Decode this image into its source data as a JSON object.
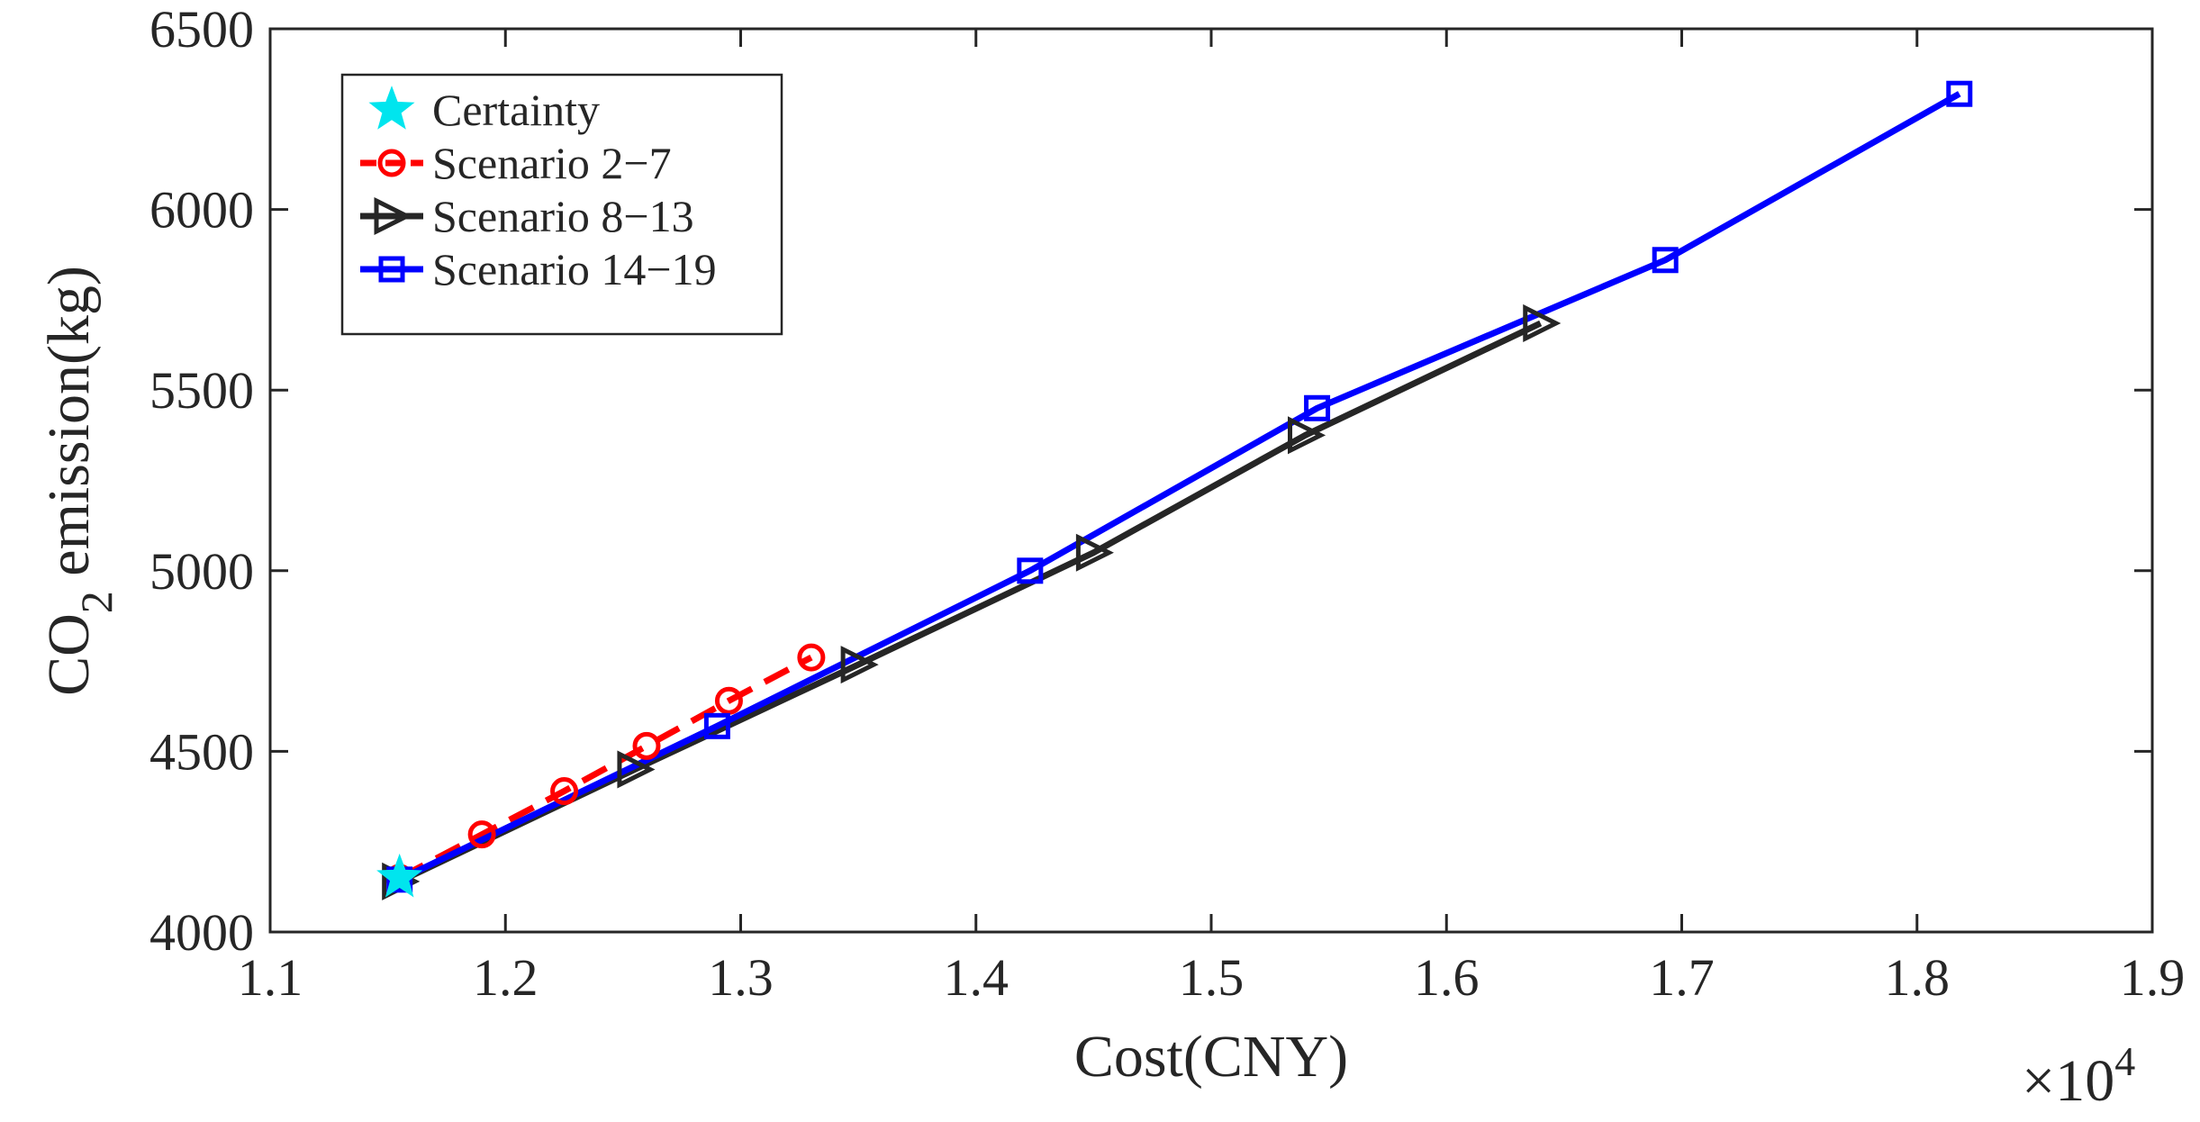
{
  "chart_data": {
    "type": "line",
    "title": "",
    "xlabel": "Cost(CNY)",
    "ylabel_main": "CO",
    "ylabel_sub": "2",
    "ylabel_rest": " emission(kg)",
    "x_multiplier_base": "×10",
    "x_multiplier_exp": "4",
    "xlim": [
      1.1,
      1.9
    ],
    "ylim": [
      4000,
      6500
    ],
    "xticks": [
      "1.1",
      "1.2",
      "1.3",
      "1.4",
      "1.5",
      "1.6",
      "1.7",
      "1.8",
      "1.9"
    ],
    "yticks": [
      "4000",
      "4500",
      "5000",
      "5500",
      "6000",
      "6500"
    ],
    "legend_position": "top-left",
    "series": [
      {
        "name": "Certainty",
        "marker": "star",
        "line": "none",
        "color": "#00e5ee",
        "x": [
          1.155
        ],
        "y": [
          4150
        ]
      },
      {
        "name": "Scenario 2−7",
        "marker": "circle",
        "line": "dashed",
        "color": "#ff0000",
        "x": [
          1.155,
          1.19,
          1.225,
          1.26,
          1.295,
          1.33
        ],
        "y": [
          4150,
          4270,
          4390,
          4515,
          4640,
          4760
        ]
      },
      {
        "name": "Scenario 8−13",
        "marker": "triangle-right",
        "line": "solid",
        "color": "#262626",
        "x": [
          1.155,
          1.255,
          1.35,
          1.45,
          1.54,
          1.64
        ],
        "y": [
          4140,
          4450,
          4740,
          5050,
          5375,
          5685
        ]
      },
      {
        "name": "Scenario 14−19",
        "marker": "square",
        "line": "solid",
        "color": "#0000ff",
        "x": [
          1.155,
          1.29,
          1.423,
          1.545,
          1.693,
          1.818
        ],
        "y": [
          4145,
          4570,
          5000,
          5450,
          5860,
          6320
        ]
      }
    ]
  }
}
